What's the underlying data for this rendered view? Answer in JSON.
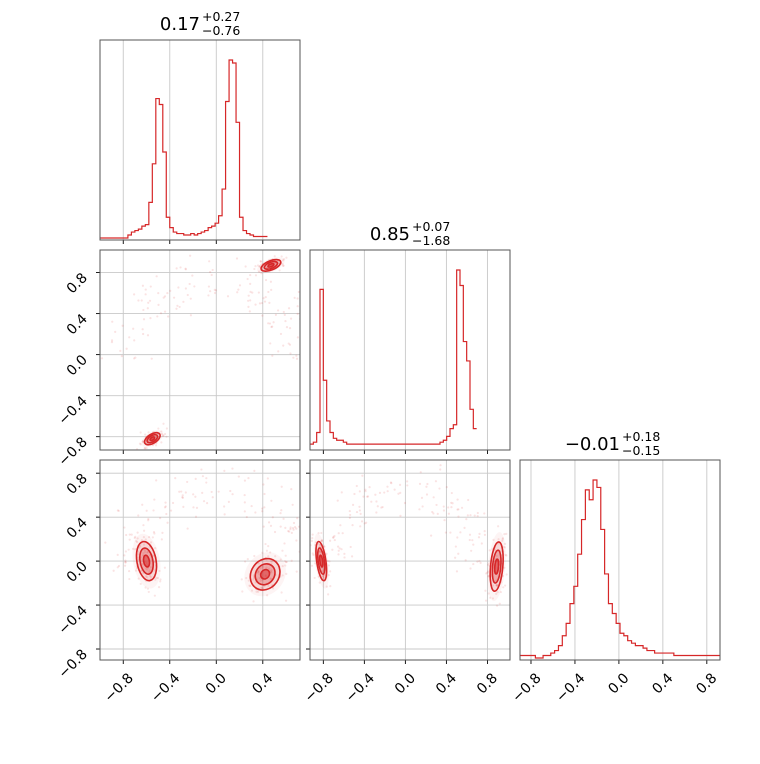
{
  "chart_data": {
    "type": "corner",
    "color": "#d62728",
    "parameters": 3,
    "titles": [
      {
        "median": "0.17",
        "plus": "+0.27",
        "minus": "−0.76"
      },
      {
        "median": "0.85",
        "plus": "+0.07",
        "minus": "−1.68"
      },
      {
        "median": "−0.01",
        "plus": "+0.18",
        "minus": "−0.15"
      }
    ],
    "ranges": [
      [
        -1.0,
        0.72
      ],
      [
        -0.93,
        1.02
      ],
      [
        -0.9,
        0.92
      ]
    ],
    "tick_values": [
      -0.8,
      -0.4,
      0.0,
      0.4,
      0.8
    ],
    "tick_labels": [
      "−0.8",
      "−0.4",
      "0.0",
      "0.4",
      "0.8"
    ],
    "grid": true,
    "histograms": [
      {
        "parameter": 0,
        "bin_start": -1.0,
        "bin_width": 0.03,
        "counts": [
          0,
          0,
          0,
          0,
          0,
          0,
          0,
          0,
          2,
          4,
          5,
          6,
          8,
          9,
          24,
          50,
          94,
          90,
          58,
          14,
          7,
          4,
          3,
          3,
          2,
          2,
          3,
          2,
          3,
          4,
          5,
          7,
          8,
          10,
          15,
          33,
          92,
          120,
          118,
          78,
          14,
          5,
          3,
          2,
          1,
          1,
          1,
          1
        ]
      },
      {
        "parameter": 1,
        "bin_start": -0.93,
        "bin_width": 0.0325,
        "counts": [
          2,
          3,
          8,
          82,
          35,
          14,
          8,
          5,
          4,
          4,
          3,
          2,
          2,
          2,
          2,
          2,
          2,
          2,
          2,
          2,
          2,
          2,
          2,
          2,
          2,
          2,
          2,
          2,
          2,
          2,
          2,
          2,
          2,
          2,
          2,
          2,
          2,
          2,
          2,
          3,
          4,
          6,
          10,
          12,
          92,
          84,
          55,
          45,
          20,
          10
        ]
      },
      {
        "parameter": 2,
        "bin_start": -0.9,
        "bin_width": 0.035,
        "counts": [
          1,
          1,
          1,
          1,
          0,
          0,
          1,
          1,
          2,
          3,
          5,
          9,
          14,
          22,
          29,
          42,
          56,
          68,
          64,
          72,
          69,
          52,
          34,
          22,
          18,
          14,
          10,
          9,
          7,
          6,
          5,
          5,
          4,
          3,
          3,
          2,
          2,
          2,
          2,
          2,
          1,
          1,
          1,
          1,
          1,
          1,
          1,
          1,
          1,
          1,
          1,
          1
        ]
      }
    ],
    "contour_panels": [
      {
        "x_param": 0,
        "y_param": 1,
        "modes": [
          {
            "cx": 0.47,
            "cy": 0.87,
            "sx": 0.06,
            "sy": 0.03,
            "angle": -22
          },
          {
            "cx": -0.55,
            "cy": -0.82,
            "sx": 0.05,
            "sy": 0.03,
            "angle": -32
          }
        ]
      },
      {
        "x_param": 0,
        "y_param": 2,
        "modes": [
          {
            "cx": -0.6,
            "cy": 0.0,
            "sx": 0.055,
            "sy": 0.12,
            "angle": -10
          },
          {
            "cx": 0.42,
            "cy": -0.12,
            "sx": 0.08,
            "sy": 0.1,
            "angle": 35
          }
        ]
      },
      {
        "x_param": 1,
        "y_param": 2,
        "modes": [
          {
            "cx": -0.82,
            "cy": 0.0,
            "sx": 0.03,
            "sy": 0.12,
            "angle": -8
          },
          {
            "cx": 0.89,
            "cy": -0.05,
            "sx": 0.04,
            "sy": 0.15,
            "angle": 5
          }
        ]
      }
    ]
  }
}
